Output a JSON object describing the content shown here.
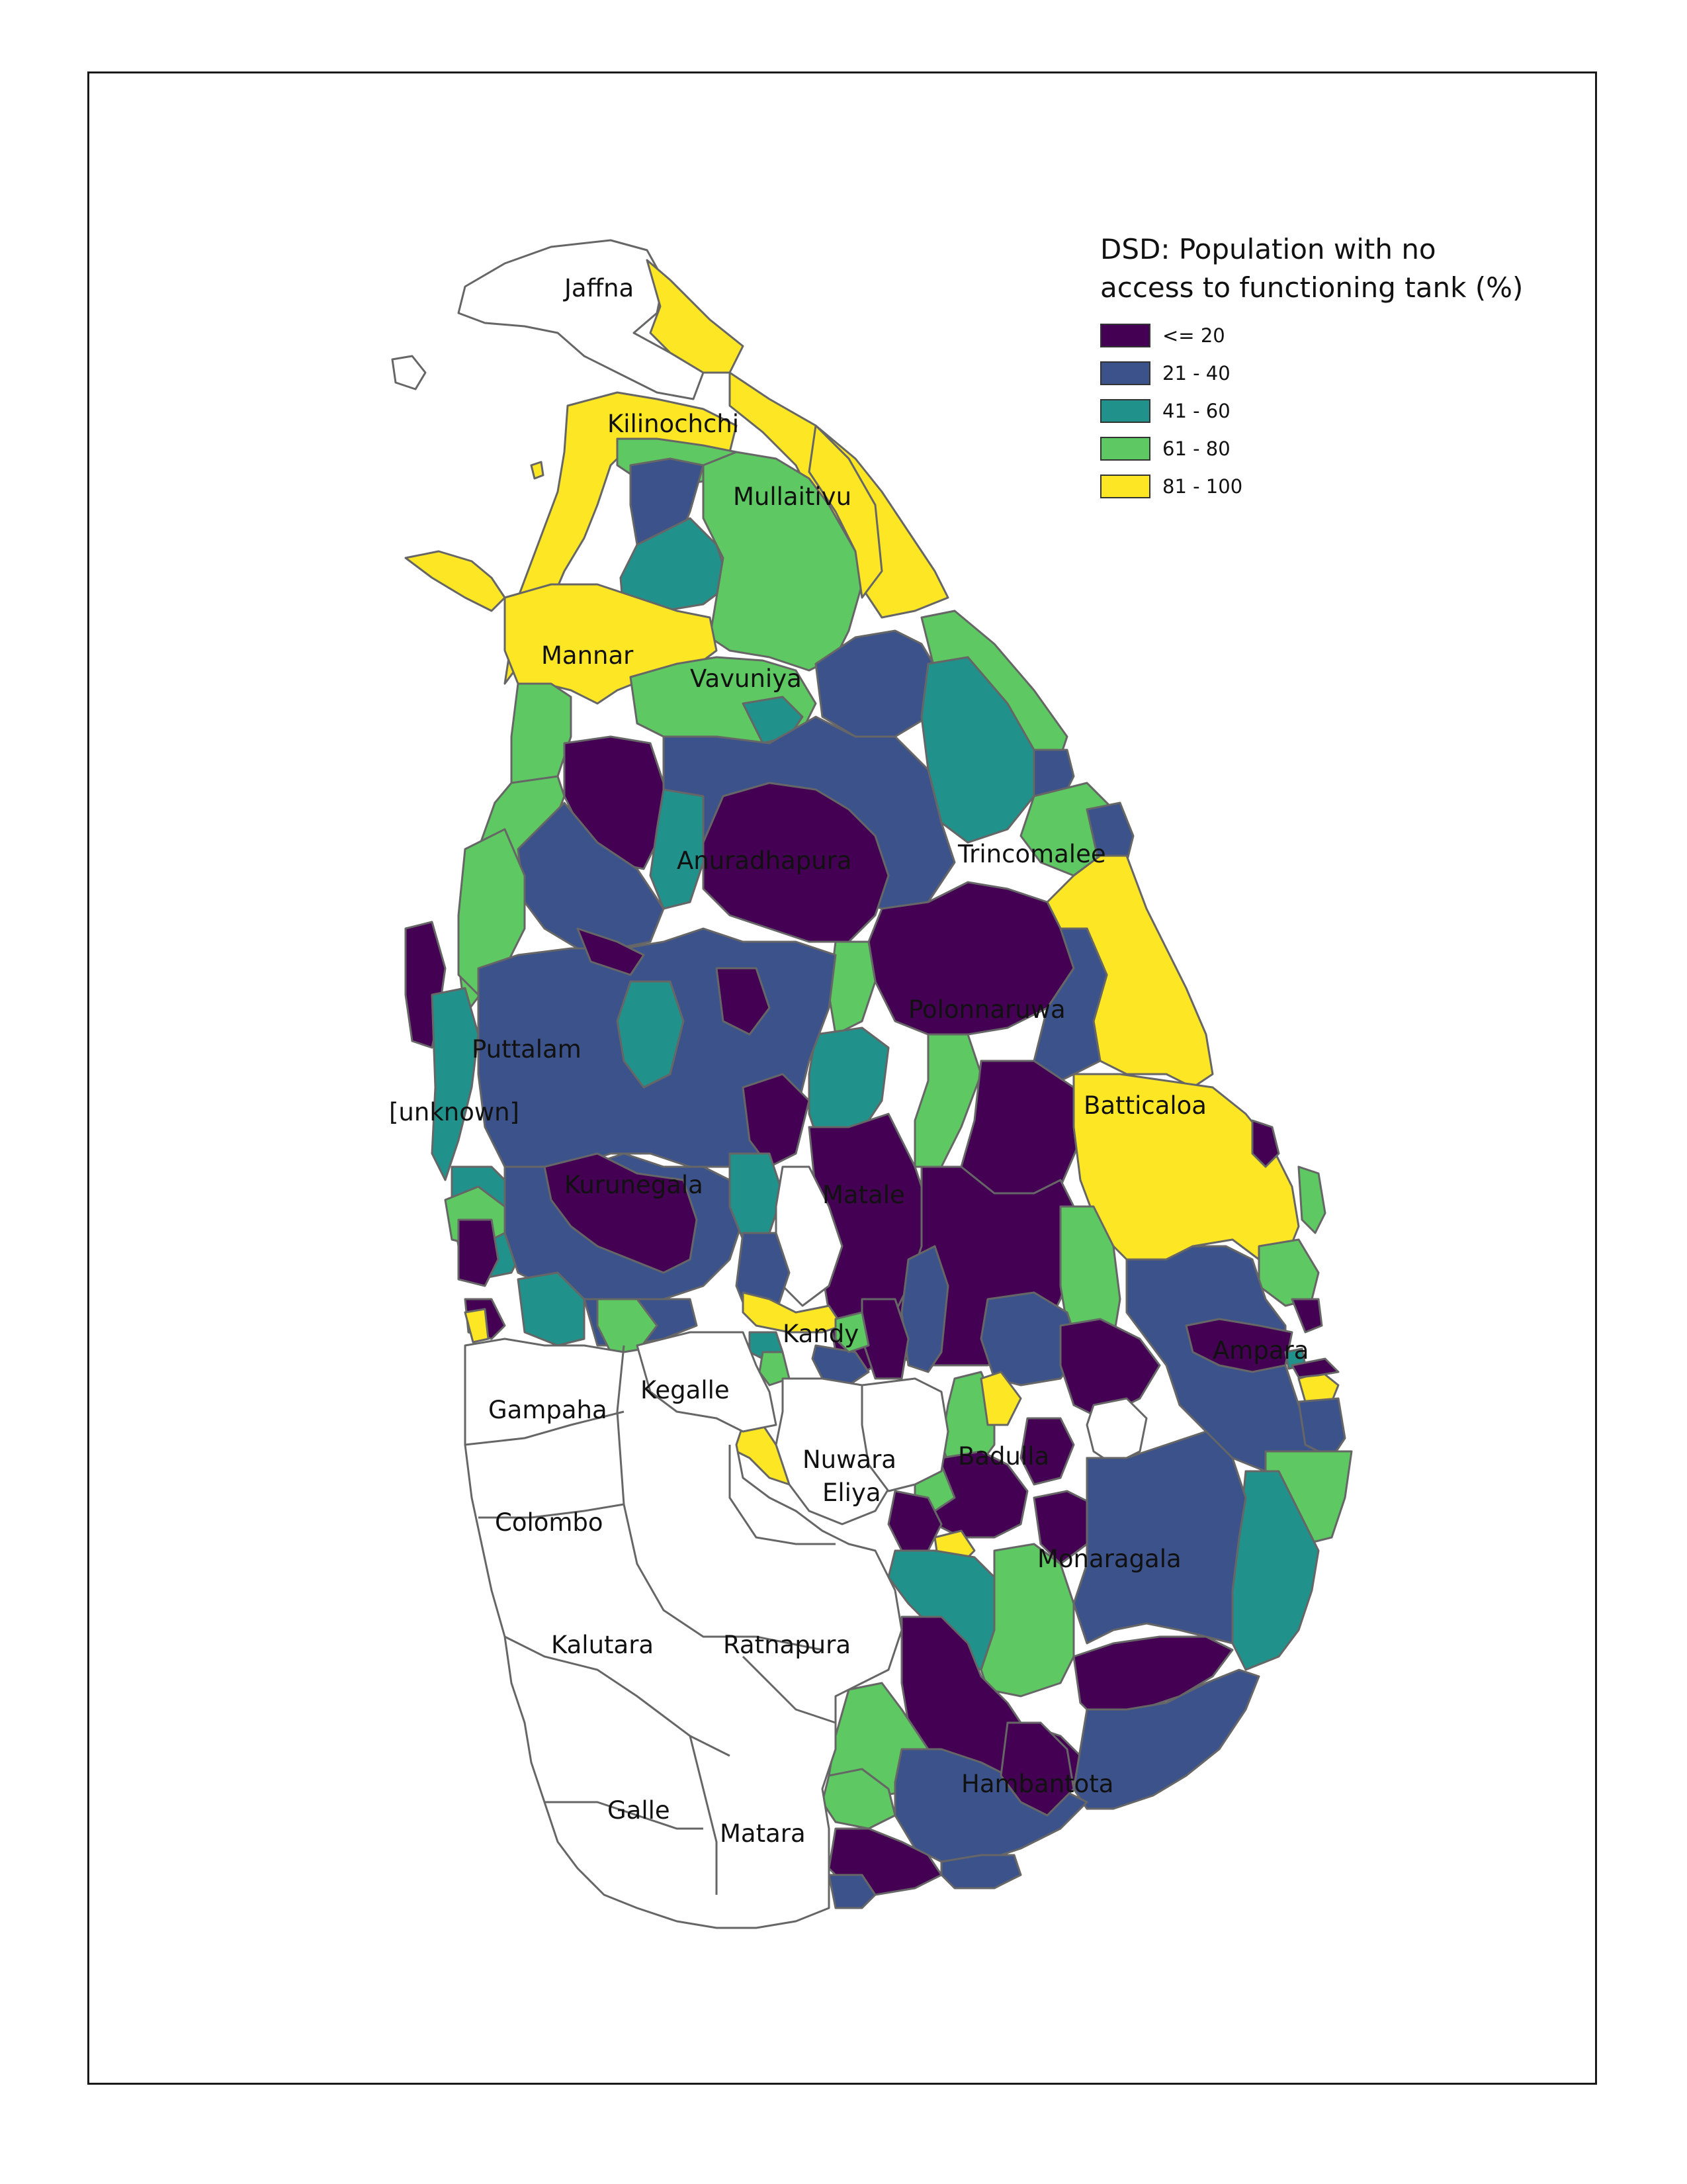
{
  "legend": {
    "title_line1": "DSD: Population with no",
    "title_line2": "access to functioning tank (%)",
    "items": [
      {
        "label": "<= 20",
        "color": "#440154"
      },
      {
        "label": "21 - 40",
        "color": "#3b528b"
      },
      {
        "label": "41 - 60",
        "color": "#21918c"
      },
      {
        "label": "61 - 80",
        "color": "#5ec962"
      },
      {
        "label": "81 - 100",
        "color": "#fde725"
      }
    ]
  },
  "map": {
    "boundary_color": "#666666",
    "no_data_color": "#ffffff",
    "district_labels": {
      "jaffna": "Jaffna",
      "kilinochchi": "Kilinochchi",
      "mullaitivu": "Mullaitivu",
      "mannar": "Mannar",
      "vavuniya": "Vavuniya",
      "anuradhapura": "Anuradhapura",
      "trincomalee": "Trincomalee",
      "polonnaruwa": "Polonnaruwa",
      "puttalam": "Puttalam",
      "unknown": "[unknown]",
      "batticaloa": "Batticaloa",
      "kurunegala": "Kurunegala",
      "matale": "Matale",
      "kandy": "Kandy",
      "ampara": "Ampara",
      "gampaha": "Gampaha",
      "kegalle": "Kegalle",
      "nuwara": "Nuwara",
      "eliya": "Eliya",
      "badulla": "Badulla",
      "colombo": "Colombo",
      "monaragala": "Monaragala",
      "kalutara": "Kalutara",
      "ratnapura": "Ratnapura",
      "galle": "Galle",
      "matara": "Matara",
      "hambantota": "Hambantota"
    }
  }
}
